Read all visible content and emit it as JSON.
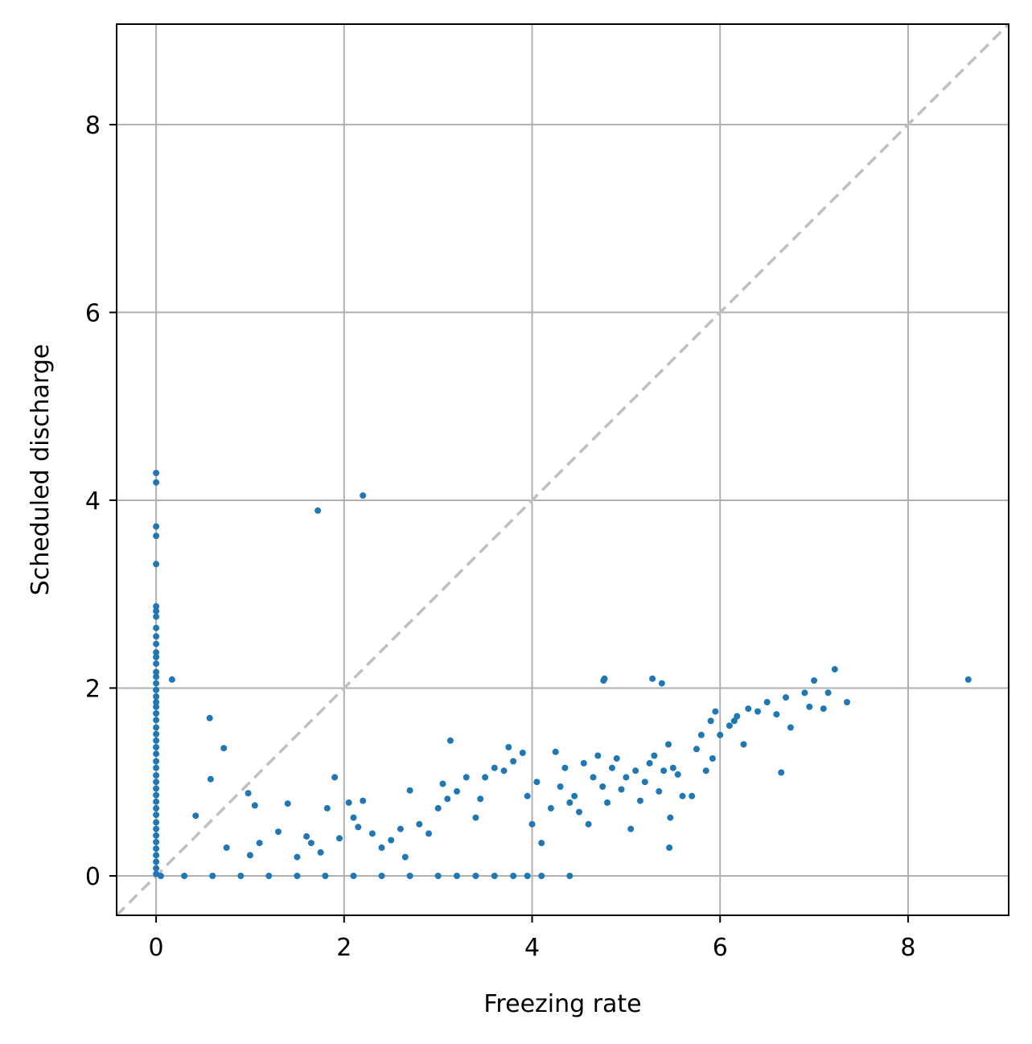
{
  "chart_data": {
    "type": "scatter",
    "title": "",
    "xlabel": "Freezing rate",
    "ylabel": "Scheduled discharge",
    "xlim": [
      -0.42,
      9.07
    ],
    "ylim": [
      -0.42,
      9.07
    ],
    "xticks": [
      0,
      2,
      4,
      6,
      8
    ],
    "yticks": [
      0,
      2,
      4,
      6,
      8
    ],
    "xtick_labels": [
      "0",
      "2",
      "4",
      "6",
      "8"
    ],
    "ytick_labels": [
      "0",
      "2",
      "4",
      "6",
      "8"
    ],
    "grid": true,
    "reference_line": {
      "type": "identity",
      "style": "dashed",
      "color": "#bfbfbf"
    },
    "marker_color": "#1f77b4",
    "series": [
      {
        "points": [
          [
            0,
            4.29
          ],
          [
            0,
            4.19
          ],
          [
            0,
            3.72
          ],
          [
            0,
            3.62
          ],
          [
            0,
            3.32
          ],
          [
            0,
            2.87
          ],
          [
            0,
            2.82
          ],
          [
            0,
            2.76
          ],
          [
            0,
            2.64
          ],
          [
            0,
            2.55
          ],
          [
            0,
            2.47
          ],
          [
            0,
            2.38
          ],
          [
            0,
            2.33
          ],
          [
            0,
            2.26
          ],
          [
            0,
            2.17
          ],
          [
            0,
            2.12
          ],
          [
            0,
            2.05
          ],
          [
            0,
            1.98
          ],
          [
            0,
            1.91
          ],
          [
            0,
            1.85
          ],
          [
            0,
            1.8
          ],
          [
            0,
            1.73
          ],
          [
            0,
            1.66
          ],
          [
            0,
            1.58
          ],
          [
            0,
            1.51
          ],
          [
            0,
            1.44
          ],
          [
            0,
            1.37
          ],
          [
            0,
            1.3
          ],
          [
            0,
            1.22
          ],
          [
            0,
            1.15
          ],
          [
            0,
            1.07
          ],
          [
            0,
            1.0
          ],
          [
            0,
            0.93
          ],
          [
            0,
            0.86
          ],
          [
            0,
            0.79
          ],
          [
            0,
            0.72
          ],
          [
            0,
            0.65
          ],
          [
            0,
            0.57
          ],
          [
            0,
            0.5
          ],
          [
            0,
            0.43
          ],
          [
            0,
            0.36
          ],
          [
            0,
            0.29
          ],
          [
            0,
            0.22
          ],
          [
            0,
            0.15
          ],
          [
            0,
            0.08
          ],
          [
            0,
            0.02
          ],
          [
            0.05,
            0
          ],
          [
            0.3,
            0
          ],
          [
            0.6,
            0
          ],
          [
            0.9,
            0
          ],
          [
            1.2,
            0
          ],
          [
            1.5,
            0
          ],
          [
            1.8,
            0
          ],
          [
            2.1,
            0
          ],
          [
            2.4,
            0
          ],
          [
            2.7,
            0
          ],
          [
            3.0,
            0
          ],
          [
            3.2,
            0
          ],
          [
            3.4,
            0
          ],
          [
            3.6,
            0
          ],
          [
            3.8,
            0
          ],
          [
            3.95,
            0
          ],
          [
            4.1,
            0
          ],
          [
            4.4,
            0
          ],
          [
            0.17,
            2.09
          ],
          [
            1.72,
            3.89
          ],
          [
            2.2,
            4.05
          ],
          [
            0.42,
            0.64
          ],
          [
            0.57,
            1.68
          ],
          [
            0.58,
            1.03
          ],
          [
            0.72,
            1.36
          ],
          [
            0.75,
            0.3
          ],
          [
            0.98,
            0.88
          ],
          [
            1.05,
            0.75
          ],
          [
            1.1,
            0.35
          ],
          [
            1.0,
            0.22
          ],
          [
            1.3,
            0.47
          ],
          [
            1.4,
            0.77
          ],
          [
            1.5,
            0.2
          ],
          [
            1.6,
            0.42
          ],
          [
            1.65,
            0.35
          ],
          [
            1.75,
            0.25
          ],
          [
            1.82,
            0.72
          ],
          [
            1.9,
            1.05
          ],
          [
            1.95,
            0.4
          ],
          [
            2.05,
            0.78
          ],
          [
            2.1,
            0.62
          ],
          [
            2.15,
            0.52
          ],
          [
            2.2,
            0.8
          ],
          [
            2.3,
            0.45
          ],
          [
            2.4,
            0.3
          ],
          [
            2.5,
            0.38
          ],
          [
            2.6,
            0.5
          ],
          [
            2.65,
            0.2
          ],
          [
            2.7,
            0.91
          ],
          [
            2.8,
            0.55
          ],
          [
            2.9,
            0.45
          ],
          [
            3.0,
            0.72
          ],
          [
            3.05,
            0.98
          ],
          [
            3.1,
            0.82
          ],
          [
            3.13,
            1.44
          ],
          [
            3.2,
            0.9
          ],
          [
            3.3,
            1.05
          ],
          [
            3.4,
            0.62
          ],
          [
            3.45,
            0.82
          ],
          [
            3.5,
            1.05
          ],
          [
            3.6,
            1.15
          ],
          [
            3.7,
            1.12
          ],
          [
            3.75,
            1.37
          ],
          [
            3.8,
            1.22
          ],
          [
            3.9,
            1.31
          ],
          [
            3.95,
            0.85
          ],
          [
            4.0,
            0.55
          ],
          [
            4.05,
            1.0
          ],
          [
            4.1,
            0.35
          ],
          [
            4.2,
            0.72
          ],
          [
            4.25,
            1.32
          ],
          [
            4.3,
            0.95
          ],
          [
            4.35,
            1.15
          ],
          [
            4.4,
            0.78
          ],
          [
            4.45,
            0.85
          ],
          [
            4.5,
            0.68
          ],
          [
            4.55,
            1.2
          ],
          [
            4.6,
            0.55
          ],
          [
            4.65,
            1.05
          ],
          [
            4.7,
            1.28
          ],
          [
            4.75,
            0.95
          ],
          [
            4.76,
            2.08
          ],
          [
            4.77,
            2.1
          ],
          [
            4.8,
            0.78
          ],
          [
            4.85,
            1.15
          ],
          [
            4.9,
            1.25
          ],
          [
            4.95,
            0.92
          ],
          [
            5.0,
            1.05
          ],
          [
            5.05,
            0.5
          ],
          [
            5.1,
            1.12
          ],
          [
            5.15,
            0.8
          ],
          [
            5.2,
            1.0
          ],
          [
            5.25,
            1.2
          ],
          [
            5.28,
            2.1
          ],
          [
            5.3,
            1.28
          ],
          [
            5.35,
            0.9
          ],
          [
            5.38,
            2.05
          ],
          [
            5.4,
            1.12
          ],
          [
            5.45,
            1.4
          ],
          [
            5.47,
            0.62
          ],
          [
            5.46,
            0.3
          ],
          [
            5.5,
            1.15
          ],
          [
            5.55,
            1.08
          ],
          [
            5.6,
            0.85
          ],
          [
            5.7,
            0.85
          ],
          [
            5.75,
            1.35
          ],
          [
            5.8,
            1.5
          ],
          [
            5.85,
            1.12
          ],
          [
            5.9,
            1.65
          ],
          [
            5.92,
            1.25
          ],
          [
            5.95,
            1.75
          ],
          [
            6.0,
            1.5
          ],
          [
            6.1,
            1.6
          ],
          [
            6.15,
            1.65
          ],
          [
            6.18,
            1.7
          ],
          [
            6.25,
            1.4
          ],
          [
            6.3,
            1.78
          ],
          [
            6.4,
            1.75
          ],
          [
            6.5,
            1.85
          ],
          [
            6.6,
            1.72
          ],
          [
            6.65,
            1.1
          ],
          [
            6.7,
            1.9
          ],
          [
            6.75,
            1.58
          ],
          [
            6.9,
            1.95
          ],
          [
            6.95,
            1.8
          ],
          [
            7.0,
            2.08
          ],
          [
            7.1,
            1.78
          ],
          [
            7.15,
            1.95
          ],
          [
            7.22,
            2.2
          ],
          [
            7.35,
            1.85
          ],
          [
            8.64,
            2.09
          ]
        ]
      }
    ]
  }
}
